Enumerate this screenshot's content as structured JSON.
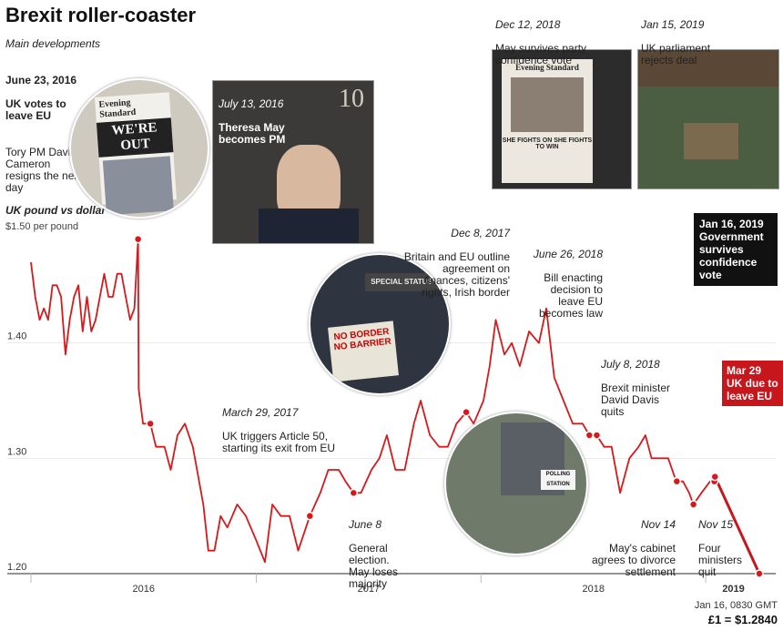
{
  "title": "Brexit roller-coaster",
  "subtitle": "Main developments",
  "y_axis_title": "UK pound vs dollar",
  "y_unit_label": "$1.50 per pound",
  "footer": {
    "timestamp": "Jan 16, 0830 GMT",
    "rate": "£1 = $1.2840"
  },
  "colors": {
    "line": "#d7191c",
    "annotation_box": "#111111",
    "exit_box": "#c8161d"
  },
  "annotations": {
    "june2016": {
      "date": "June 23, 2016",
      "bold": "UK votes to leave EU",
      "text": "Tory PM David Cameron resigns the nex day"
    },
    "july2016": {
      "date": "July 13, 2016",
      "bold": "Theresa May becomes PM"
    },
    "march2017": {
      "date": "March 29, 2017",
      "text": "UK triggers Article 50, starting its exit from EU"
    },
    "june2017": {
      "date": "June 8",
      "text": "General election. May loses majority"
    },
    "dec2017": {
      "date": "Dec 8,  2017",
      "text": "Britain and EU outline agreement on finances, citizens' rights, Irish border"
    },
    "june2018": {
      "date": "June 26, 2018",
      "text": "Bill enacting decision to leave EU becomes law"
    },
    "july2018": {
      "date": "July 8, 2018",
      "text": "Brexit minister David Davis quits"
    },
    "nov14": {
      "date": "Nov 14",
      "text": "May's cabinet agrees to divorce settlement"
    },
    "nov15": {
      "date": "Nov 15",
      "text": "Four ministers quit"
    },
    "dec12": {
      "date": "Dec 12, 2018",
      "text": "May survives party confidence vote"
    },
    "jan15": {
      "date": "Jan 15, 2019",
      "text": "UK parliament rejects deal"
    },
    "jan16": {
      "date": "Jan 16, 2019",
      "bold": "Government survives confidence vote"
    },
    "mar29": {
      "date": "Mar 29",
      "bold": "UK due to leave EU"
    }
  },
  "photo_text": {
    "newspaper_headline": "WE'RE OUT",
    "newspaper_mast": "Evening Standard",
    "door_number": "10",
    "protest_sign": "NO BORDER NO BARRIER",
    "polling_sign": "POLLING STATION",
    "evening_standard_mast": "Evening Standard",
    "evening_standard_headline": "SHE FIGHTS ON SHE FIGHTS TO WIN"
  },
  "chart_data": {
    "type": "line",
    "ylabel": "UK pound vs dollar",
    "ylim": [
      1.2,
      1.5
    ],
    "yticks": [
      1.2,
      1.3,
      1.4
    ],
    "ytick_labels": [
      "1.20",
      "1.30",
      "1.40"
    ],
    "xticks": [
      "2016",
      "2017",
      "2018",
      "2019"
    ],
    "grid": false,
    "series": [
      {
        "values": [
          [
            "2016-01-01",
            1.47
          ],
          [
            "2016-01-08",
            1.44
          ],
          [
            "2016-01-15",
            1.42
          ],
          [
            "2016-01-22",
            1.43
          ],
          [
            "2016-01-29",
            1.42
          ],
          [
            "2016-02-05",
            1.45
          ],
          [
            "2016-02-12",
            1.45
          ],
          [
            "2016-02-19",
            1.44
          ],
          [
            "2016-02-26",
            1.39
          ],
          [
            "2016-03-04",
            1.42
          ],
          [
            "2016-03-11",
            1.44
          ],
          [
            "2016-03-18",
            1.45
          ],
          [
            "2016-03-25",
            1.41
          ],
          [
            "2016-04-01",
            1.44
          ],
          [
            "2016-04-08",
            1.41
          ],
          [
            "2016-04-15",
            1.42
          ],
          [
            "2016-04-22",
            1.44
          ],
          [
            "2016-04-29",
            1.46
          ],
          [
            "2016-05-06",
            1.44
          ],
          [
            "2016-05-13",
            1.44
          ],
          [
            "2016-05-20",
            1.46
          ],
          [
            "2016-05-27",
            1.46
          ],
          [
            "2016-06-03",
            1.44
          ],
          [
            "2016-06-10",
            1.42
          ],
          [
            "2016-06-17",
            1.43
          ],
          [
            "2016-06-23",
            1.49
          ],
          [
            "2016-06-24",
            1.36
          ],
          [
            "2016-07-01",
            1.33
          ],
          [
            "2016-07-13",
            1.33
          ],
          [
            "2016-07-22",
            1.31
          ],
          [
            "2016-08-05",
            1.31
          ],
          [
            "2016-08-15",
            1.29
          ],
          [
            "2016-08-26",
            1.32
          ],
          [
            "2016-09-07",
            1.33
          ],
          [
            "2016-09-20",
            1.31
          ],
          [
            "2016-10-07",
            1.26
          ],
          [
            "2016-10-15",
            1.22
          ],
          [
            "2016-10-25",
            1.22
          ],
          [
            "2016-11-04",
            1.25
          ],
          [
            "2016-11-15",
            1.24
          ],
          [
            "2016-12-01",
            1.26
          ],
          [
            "2016-12-15",
            1.25
          ],
          [
            "2016-12-31",
            1.23
          ],
          [
            "2017-01-15",
            1.21
          ],
          [
            "2017-01-27",
            1.26
          ],
          [
            "2017-02-10",
            1.25
          ],
          [
            "2017-02-24",
            1.25
          ],
          [
            "2017-03-10",
            1.22
          ],
          [
            "2017-03-29",
            1.25
          ],
          [
            "2017-04-15",
            1.27
          ],
          [
            "2017-04-28",
            1.29
          ],
          [
            "2017-05-15",
            1.29
          ],
          [
            "2017-05-26",
            1.28
          ],
          [
            "2017-06-08",
            1.27
          ],
          [
            "2017-06-20",
            1.27
          ],
          [
            "2017-07-07",
            1.29
          ],
          [
            "2017-07-20",
            1.3
          ],
          [
            "2017-08-01",
            1.32
          ],
          [
            "2017-08-15",
            1.29
          ],
          [
            "2017-08-30",
            1.29
          ],
          [
            "2017-09-14",
            1.33
          ],
          [
            "2017-09-25",
            1.35
          ],
          [
            "2017-10-10",
            1.32
          ],
          [
            "2017-10-25",
            1.31
          ],
          [
            "2017-11-08",
            1.31
          ],
          [
            "2017-11-22",
            1.33
          ],
          [
            "2017-12-08",
            1.34
          ],
          [
            "2017-12-20",
            1.33
          ],
          [
            "2018-01-05",
            1.35
          ],
          [
            "2018-01-15",
            1.38
          ],
          [
            "2018-01-25",
            1.42
          ],
          [
            "2018-02-08",
            1.39
          ],
          [
            "2018-02-20",
            1.4
          ],
          [
            "2018-03-05",
            1.38
          ],
          [
            "2018-03-20",
            1.41
          ],
          [
            "2018-04-05",
            1.4
          ],
          [
            "2018-04-17",
            1.43
          ],
          [
            "2018-04-30",
            1.37
          ],
          [
            "2018-05-15",
            1.35
          ],
          [
            "2018-05-30",
            1.33
          ],
          [
            "2018-06-15",
            1.33
          ],
          [
            "2018-06-26",
            1.32
          ],
          [
            "2018-07-08",
            1.32
          ],
          [
            "2018-07-20",
            1.31
          ],
          [
            "2018-08-01",
            1.31
          ],
          [
            "2018-08-15",
            1.27
          ],
          [
            "2018-08-30",
            1.3
          ],
          [
            "2018-09-14",
            1.31
          ],
          [
            "2018-09-25",
            1.32
          ],
          [
            "2018-10-05",
            1.3
          ],
          [
            "2018-10-20",
            1.3
          ],
          [
            "2018-11-01",
            1.3
          ],
          [
            "2018-11-14",
            1.28
          ],
          [
            "2018-11-15",
            1.28
          ],
          [
            "2018-11-25",
            1.28
          ],
          [
            "2018-12-05",
            1.27
          ],
          [
            "2018-12-12",
            1.26
          ],
          [
            "2018-12-25",
            1.27
          ],
          [
            "2019-01-08",
            1.28
          ],
          [
            "2019-01-15",
            1.28
          ],
          [
            "2019-01-16",
            1.284
          ]
        ]
      }
    ],
    "event_points": [
      {
        "date": "2016-06-23",
        "value": 1.49
      },
      {
        "date": "2016-07-13",
        "value": 1.33
      },
      {
        "date": "2017-03-29",
        "value": 1.25
      },
      {
        "date": "2017-06-08",
        "value": 1.27
      },
      {
        "date": "2017-12-08",
        "value": 1.34
      },
      {
        "date": "2018-06-26",
        "value": 1.32
      },
      {
        "date": "2018-07-08",
        "value": 1.32
      },
      {
        "date": "2018-11-14",
        "value": 1.28
      },
      {
        "date": "2018-11-15",
        "value": 1.28
      },
      {
        "date": "2018-12-12",
        "value": 1.26
      },
      {
        "date": "2019-01-15",
        "value": 1.28
      },
      {
        "date": "2019-01-16",
        "value": 1.284
      },
      {
        "date": "2019-03-29",
        "value": 1.2
      }
    ]
  }
}
